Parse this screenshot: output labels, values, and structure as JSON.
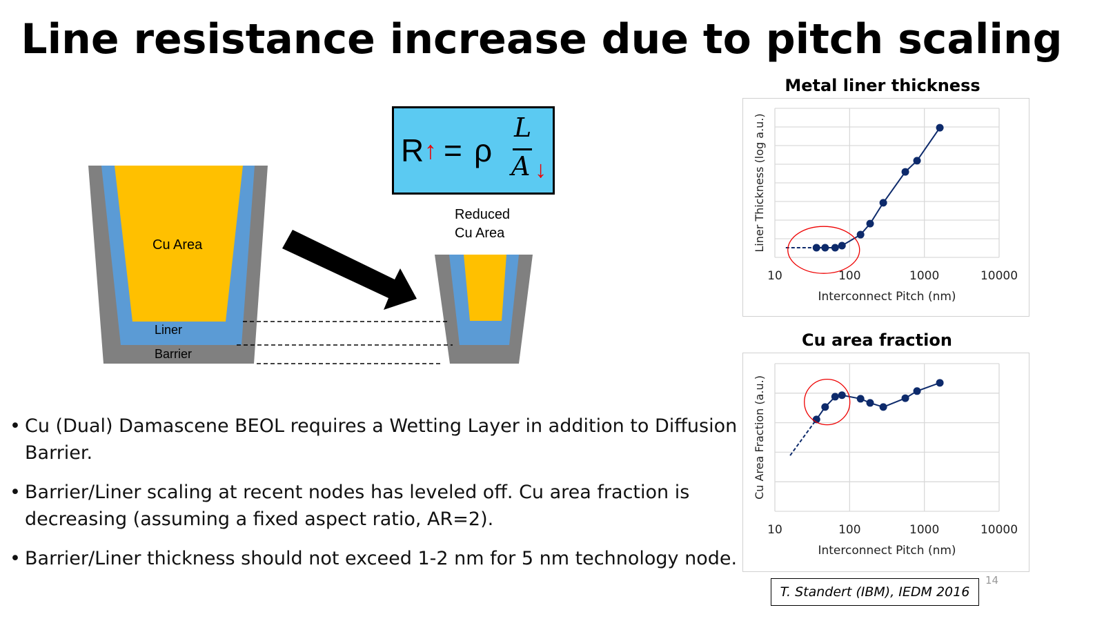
{
  "title": "Line resistance increase due to pitch scaling",
  "formula": {
    "lhs": "R",
    "up_arrow": "↑",
    "equals": "=",
    "rho": "ρ",
    "numerator": "L",
    "denominator": "A",
    "down_arrow": "↓"
  },
  "diagram": {
    "cu_area": "Cu Area",
    "liner": "Liner",
    "barrier": "Barrier",
    "reduced_line1": "Reduced",
    "reduced_line2": "Cu Area",
    "colors": {
      "cu": "#ffc000",
      "liner": "#5b9bd5",
      "barrier": "#808080"
    }
  },
  "bullets": [
    "Cu (Dual) Damascene BEOL requires a Wetting Layer in addition to Diffusion Barrier.",
    "Barrier/Liner scaling at recent nodes has leveled off. Cu area fraction is decreasing (assuming a fixed aspect ratio, AR=2).",
    "Barrier/Liner thickness should not exceed 1-2 nm for 5 nm technology node."
  ],
  "citation": "T. Standert (IBM), IEDM 2016",
  "page_number": "14",
  "chart_data": [
    {
      "type": "line",
      "title": "Metal liner thickness",
      "xlabel": "Interconnect Pitch (nm)",
      "ylabel": "Liner Thickness (log a.u.)",
      "xscale": "log",
      "xlim": [
        10,
        10000
      ],
      "xticks": [
        "10",
        "100",
        "1000",
        "10000"
      ],
      "ylim": [
        0,
        8
      ],
      "grid": true,
      "x": [
        36,
        47,
        64,
        79,
        140,
        188,
        282,
        556,
        798,
        1610
      ],
      "y": [
        0.52,
        0.52,
        0.52,
        0.63,
        1.22,
        1.81,
        2.93,
        4.59,
        5.19,
        6.96
      ],
      "extrapolation": {
        "x": [
          14,
          36
        ],
        "y": [
          0.52,
          0.52
        ]
      },
      "highlight_circle_center": {
        "x": 45,
        "y": 0.4
      },
      "color": "#0d2a6b"
    },
    {
      "type": "line",
      "title": "Cu area fraction",
      "xlabel": "Interconnect Pitch (nm)",
      "ylabel": "Cu Area Fraction (a.u.)",
      "xscale": "log",
      "xlim": [
        10,
        10000
      ],
      "xticks": [
        "10",
        "100",
        "1000",
        "10000"
      ],
      "ylim": [
        0,
        5
      ],
      "grid": true,
      "x": [
        36,
        47,
        64,
        79,
        140,
        188,
        282,
        556,
        798,
        1610
      ],
      "y": [
        3.11,
        3.53,
        3.88,
        3.93,
        3.81,
        3.67,
        3.53,
        3.83,
        4.07,
        4.35
      ],
      "extrapolation": {
        "x": [
          16,
          36
        ],
        "y": [
          1.89,
          3.11
        ]
      },
      "highlight_circle_center": {
        "x": 50,
        "y": 3.7
      },
      "color": "#0d2a6b"
    }
  ]
}
